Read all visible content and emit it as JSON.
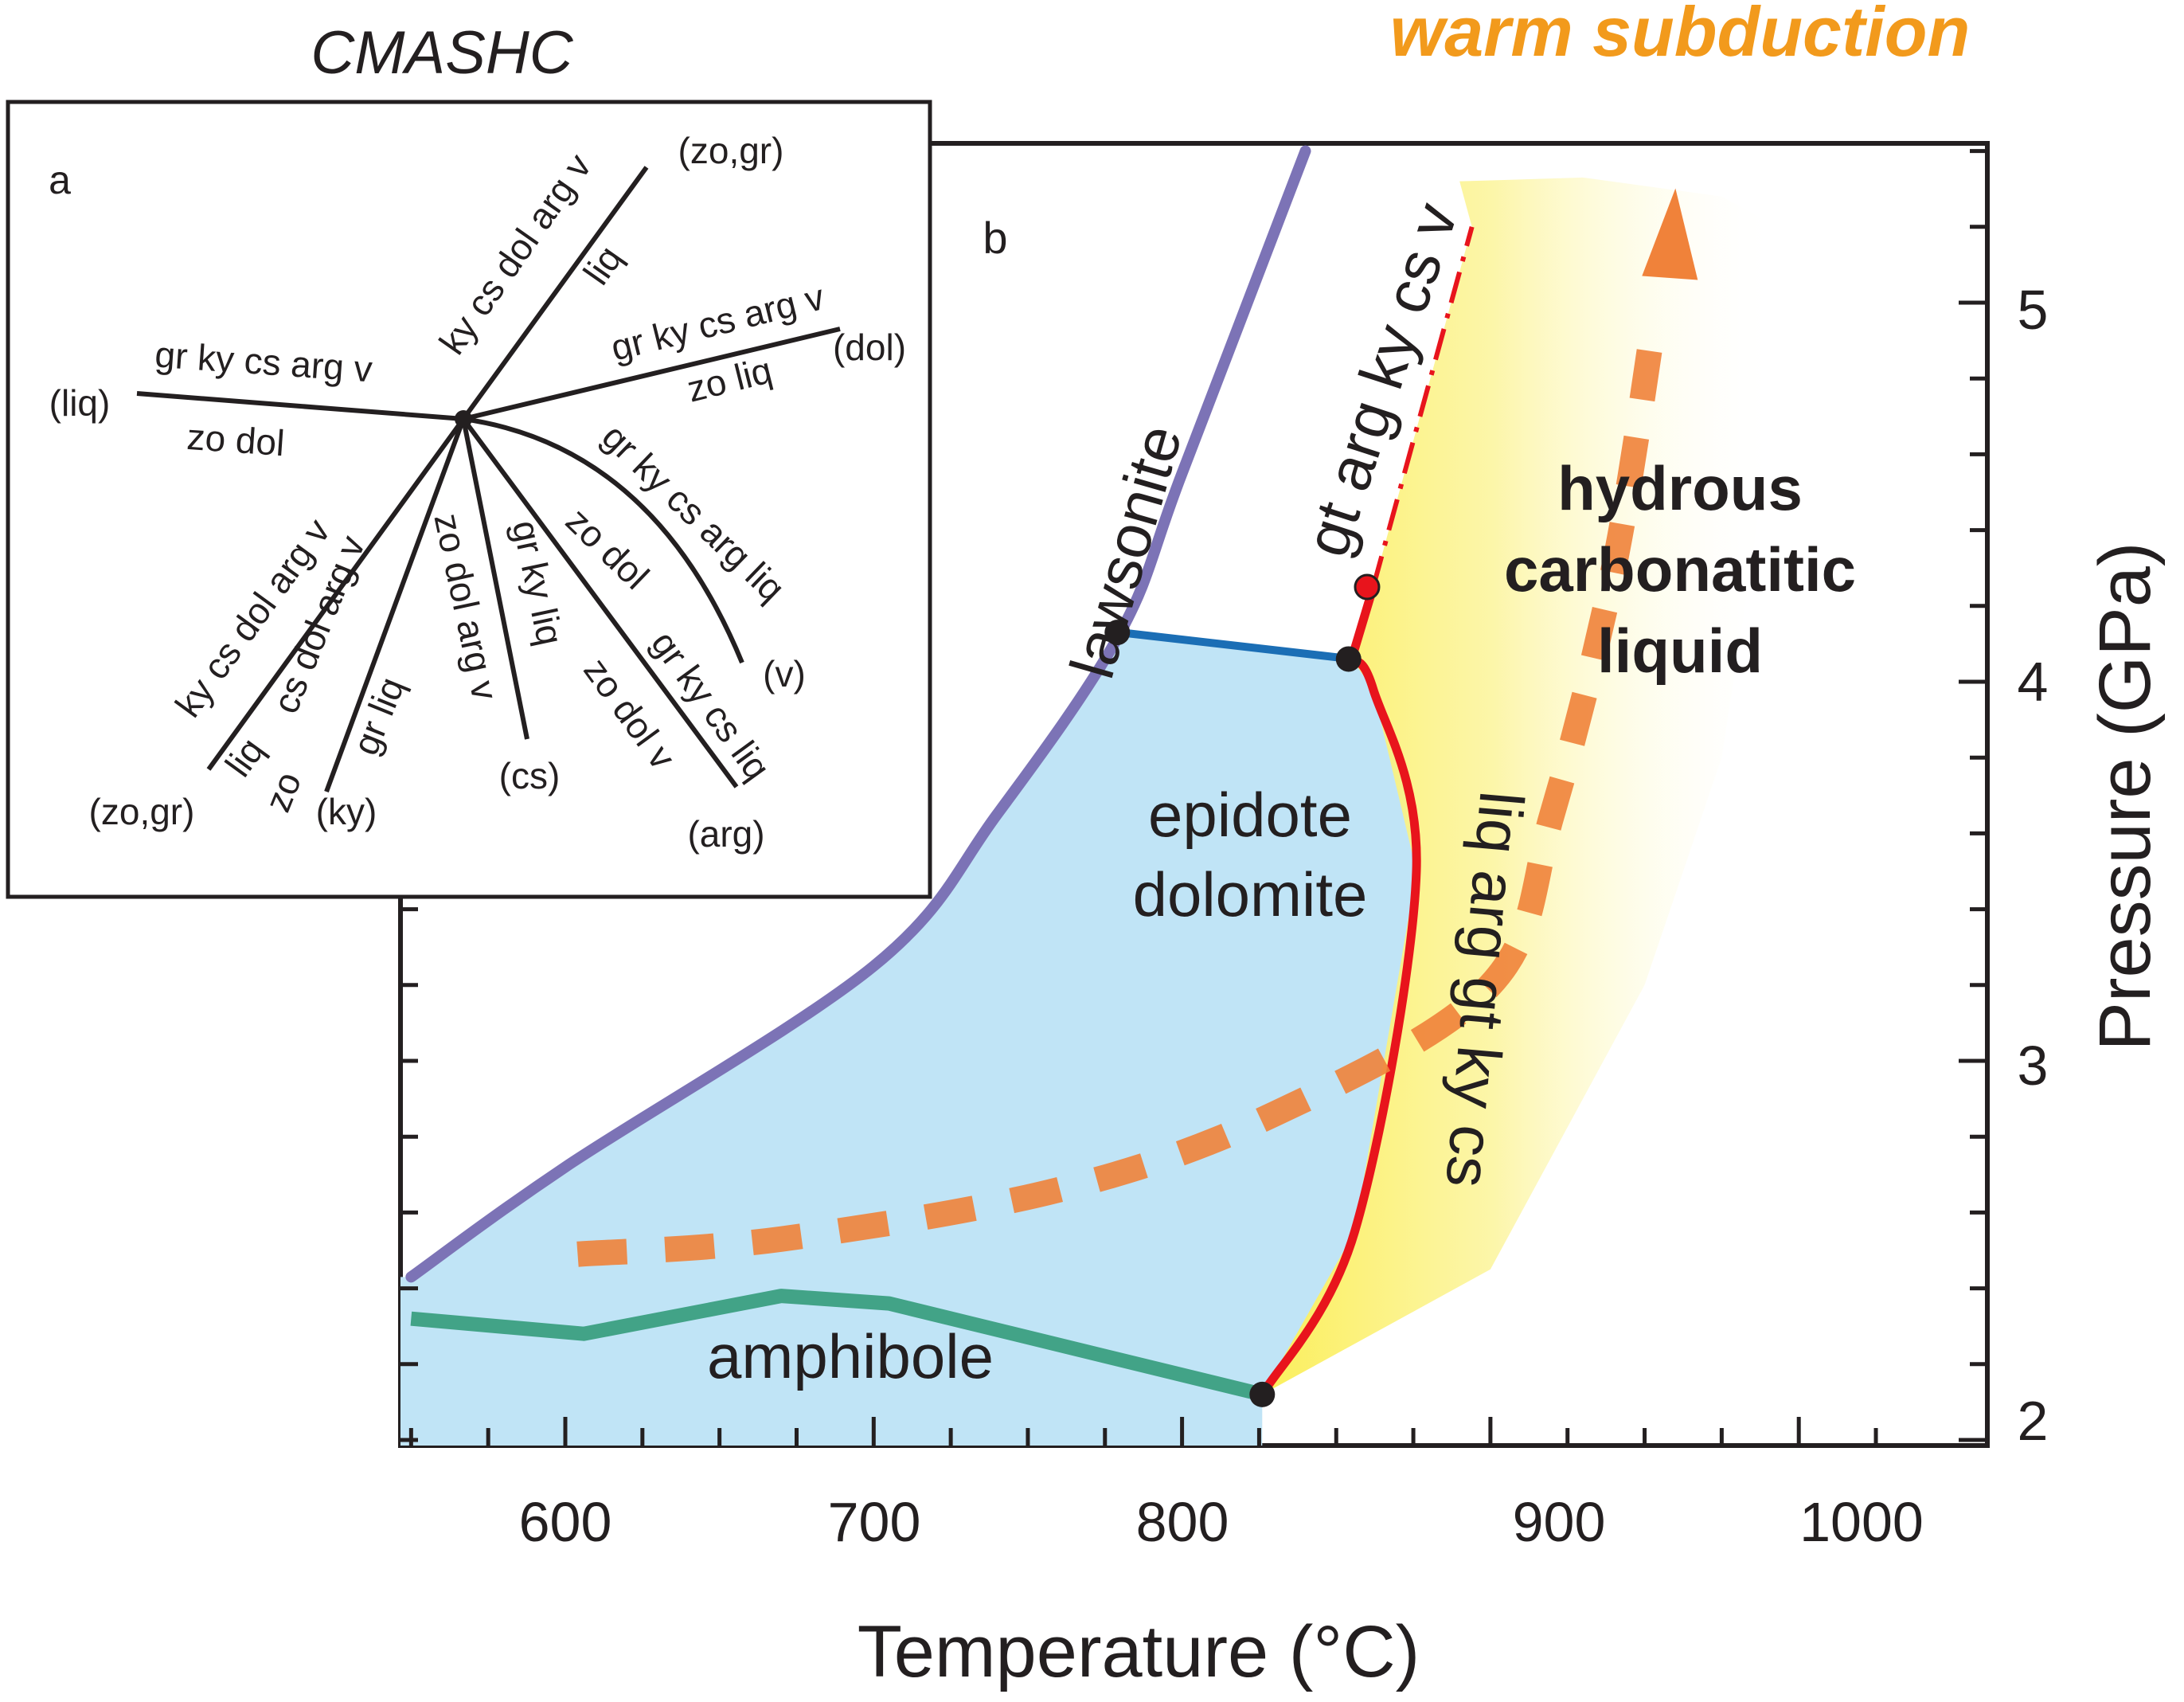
{
  "colors": {
    "blue_field": "#c0e4f6",
    "lawsonite_line": "#7c73b6",
    "amphibole_line": "#42a387",
    "melt_line": "#e8141c",
    "upper_line": "#1b6eb5",
    "subduction_path": "#f0823a",
    "liquid_field": "#fbf06a",
    "title_orange": "#f29a1c",
    "axis": "#231f20"
  },
  "title": "warm subduction",
  "system_label": "CMASHC",
  "panel_a": {
    "label": "a",
    "reactions": [
      {
        "top": "gr ky cs arg v",
        "bottom": "zo dol",
        "end": "(liq)"
      },
      {
        "top": "ky cs dol arg v",
        "bottom": "liq",
        "end": "(zo,gr)"
      },
      {
        "top": "gr ky cs arg v",
        "bottom": "zo liq",
        "end": "(dol)"
      },
      {
        "top": "gr ky cs arg liq",
        "bottom": "zo dol",
        "end": "(v)"
      },
      {
        "top": "gr ky cs liq",
        "bottom": "zo dol v",
        "end": "(arg)"
      },
      {
        "top": "gr ky liq",
        "bottom": "zo dol arg v",
        "end": "(cs)"
      },
      {
        "top": "cs dol arg v",
        "bottom": "zo",
        "extra": "gr liq",
        "end": "(ky)"
      },
      {
        "top": "ky cs dol arg v",
        "bottom": "liq",
        "end": "(zo,gr)"
      }
    ]
  },
  "panel_b": {
    "label": "b",
    "fields": {
      "lawsonite": "lawsonite",
      "upper": "gt arg ky cs v",
      "epidote_1": "epidote",
      "epidote_2": "dolomite",
      "amphibole": "amphibole",
      "liquid_1": "hydrous",
      "liquid_2": "carbonatitic",
      "liquid_3": "liquid",
      "melt_reaction": "liq arg gt ky cs"
    }
  },
  "chart_data": {
    "type": "phase-diagram",
    "xlabel": "Temperature (°C)",
    "ylabel": "Pressure (GPa)",
    "xlim": [
      550,
      1040
    ],
    "ylim": [
      1.95,
      5.35
    ],
    "x_ticks": [
      "600",
      "700",
      "800",
      "900",
      "1000"
    ],
    "y_ticks": [
      "2",
      "3",
      "4",
      "5"
    ],
    "curves": [
      {
        "id": "lawsonite",
        "points": [
          [
            550,
            2.43
          ],
          [
            600,
            2.72
          ],
          [
            700,
            3.25
          ],
          [
            740,
            3.65
          ],
          [
            780,
            4.13
          ],
          [
            800,
            4.55
          ],
          [
            840,
            5.4
          ]
        ]
      },
      {
        "id": "amphibole",
        "points": [
          [
            550,
            2.32
          ],
          [
            606,
            2.28
          ],
          [
            670,
            2.38
          ],
          [
            705,
            2.36
          ],
          [
            826,
            2.12
          ]
        ]
      },
      {
        "id": "upper-boundary",
        "points": [
          [
            780,
            4.13
          ],
          [
            855,
            4.06
          ]
        ]
      },
      {
        "id": "melting",
        "points": [
          [
            826,
            2.12
          ],
          [
            856,
            2.55
          ],
          [
            876,
            3.5
          ],
          [
            862,
            3.98
          ],
          [
            855,
            4.06
          ]
        ]
      },
      {
        "id": "melting-continuation",
        "points": [
          [
            855,
            4.06
          ],
          [
            862,
            4.25
          ]
        ]
      },
      {
        "id": "metastable-dashed",
        "points": [
          [
            862,
            4.25
          ],
          [
            894,
            5.2
          ]
        ]
      },
      {
        "id": "warm-subduction-path",
        "points": [
          [
            604,
            2.49
          ],
          [
            670,
            2.53
          ],
          [
            760,
            2.66
          ],
          [
            830,
            2.86
          ],
          [
            900,
            3.2
          ],
          [
            920,
            3.65
          ],
          [
            940,
            4.3
          ],
          [
            953,
            4.95
          ],
          [
            960,
            5.27
          ]
        ]
      }
    ],
    "points": [
      {
        "id": "lawsonite-junction",
        "x": 779,
        "y": 4.13
      },
      {
        "id": "upper-junction",
        "x": 854,
        "y": 4.06
      },
      {
        "id": "liquid-endpoint",
        "x": 860,
        "y": 4.25
      },
      {
        "id": "low-junction",
        "x": 826,
        "y": 2.12
      }
    ]
  }
}
